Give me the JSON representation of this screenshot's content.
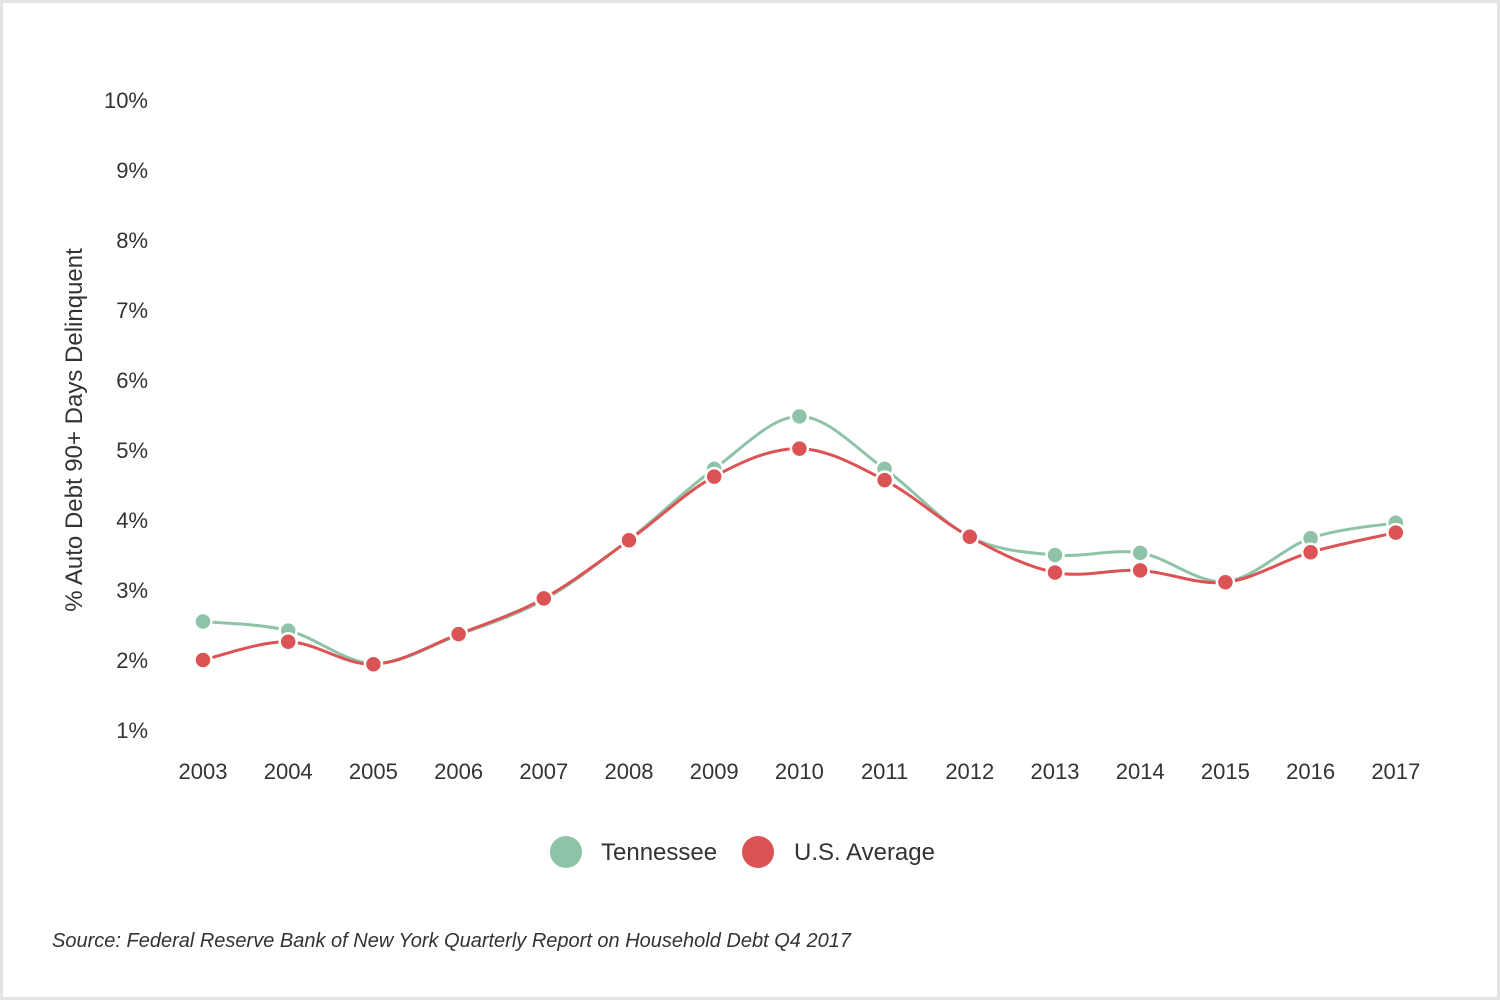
{
  "chart_data": {
    "type": "line",
    "title": "",
    "ylabel": "% Auto Debt 90+ Days Delinquent",
    "xlabel": "",
    "categories": [
      "2003",
      "2004",
      "2005",
      "2006",
      "2007",
      "2008",
      "2009",
      "2010",
      "2011",
      "2012",
      "2013",
      "2014",
      "2015",
      "2016",
      "2017"
    ],
    "yticks": [
      "1%",
      "2%",
      "3%",
      "4%",
      "5%",
      "6%",
      "7%",
      "8%",
      "9%",
      "10%"
    ],
    "ylim": [
      1,
      10
    ],
    "series": [
      {
        "name": "Tennessee",
        "color": "#8fc3a8",
        "values": [
          2.55,
          2.42,
          1.95,
          2.36,
          2.86,
          3.72,
          4.73,
          5.48,
          4.73,
          3.76,
          3.5,
          3.53,
          3.12,
          3.74,
          3.96
        ]
      },
      {
        "name": "U.S. Average",
        "color": "#dc5356",
        "values": [
          2.0,
          2.26,
          1.94,
          2.37,
          2.88,
          3.71,
          4.62,
          5.02,
          4.57,
          3.76,
          3.25,
          3.28,
          3.11,
          3.54,
          3.82
        ]
      }
    ],
    "legend_position": "bottom-center",
    "grid": false
  },
  "source": "Source: Federal Reserve Bank of New York Quarterly Report on Household Debt Q4 2017"
}
